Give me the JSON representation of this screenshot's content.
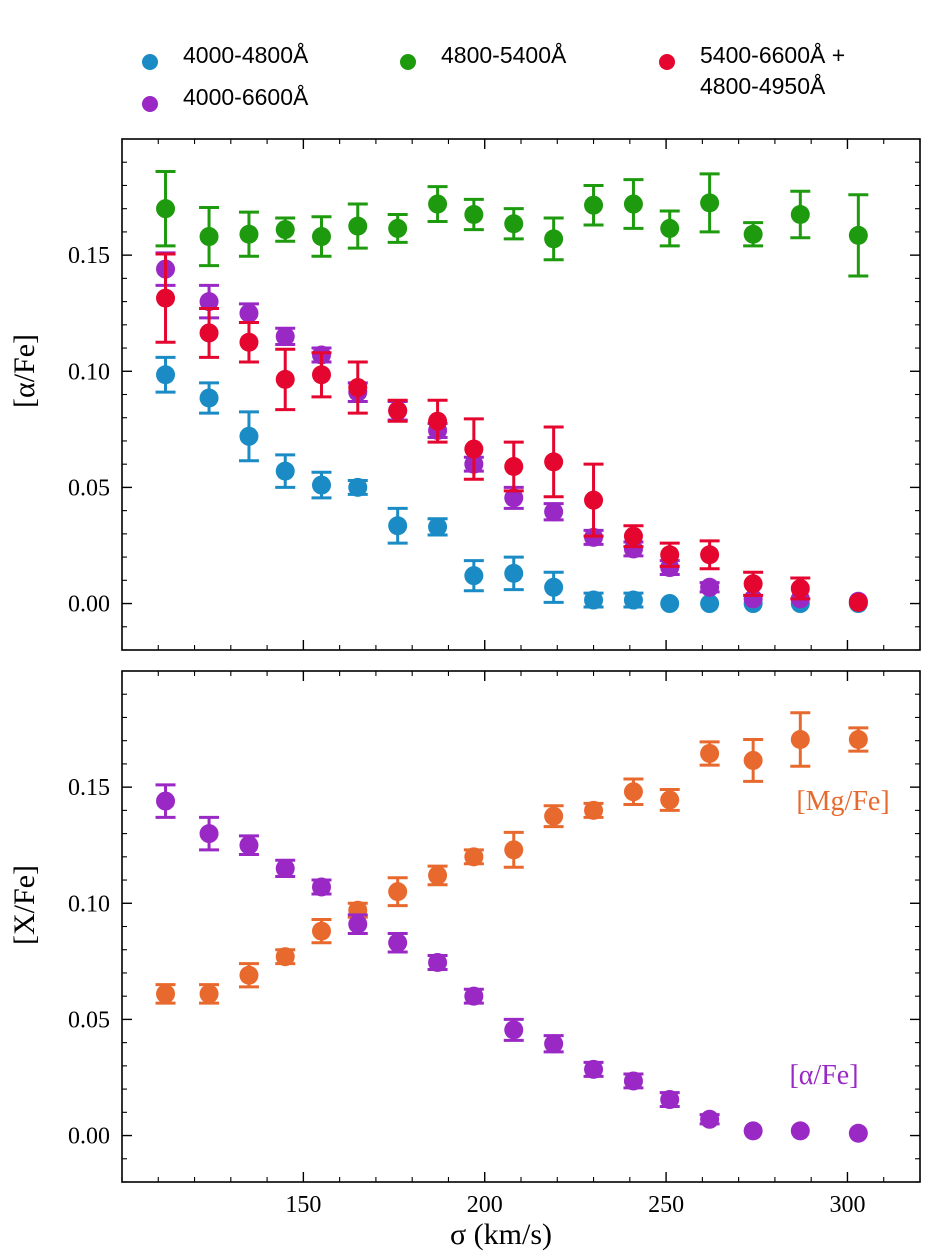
{
  "chart_data": [
    {
      "type": "scatter",
      "panel": "top",
      "xlabel": "σ (km/s)",
      "ylabel": "[α/Fe]",
      "xlim": [
        100,
        320
      ],
      "ylim": [
        -0.02,
        0.2
      ],
      "x_ticks": [
        150,
        200,
        250,
        300
      ],
      "y_ticks": [
        0.0,
        0.05,
        0.1,
        0.15
      ],
      "y_tick_labels": [
        "0.00",
        "0.05",
        "0.10",
        "0.15"
      ],
      "legend": {
        "placement": "above-top",
        "entries": [
          {
            "label": "4000-4800Å",
            "color": "#1a8bc4"
          },
          {
            "label": "4800-5400Å",
            "color": "#1d9a0e"
          },
          {
            "label": "5400-6600Å +",
            "label2": "4800-4950Å",
            "color": "#e4062f"
          },
          {
            "label": "4000-6600Å",
            "color": "#9a28c4"
          }
        ]
      },
      "series": [
        {
          "name": "4000-4800Å",
          "color": "#1a8bc4",
          "x": [
            112,
            124,
            135,
            145,
            155,
            165,
            176,
            187,
            197,
            208,
            219,
            230,
            241,
            251,
            262,
            274,
            287,
            303
          ],
          "y": [
            0.0985,
            0.0885,
            0.072,
            0.057,
            0.051,
            0.05,
            0.0335,
            0.033,
            0.012,
            0.013,
            0.007,
            0.0015,
            0.0015,
            0.0,
            0.0,
            0.0,
            0.0,
            0.0
          ],
          "err": [
            0.0075,
            0.0065,
            0.0105,
            0.007,
            0.0055,
            0.003,
            0.0075,
            0.0035,
            0.0065,
            0.007,
            0.0065,
            0.003,
            0.003,
            0.0,
            0.0,
            0.0,
            0.0,
            0.0
          ]
        },
        {
          "name": "4000-6600Å",
          "color": "#9a28c4",
          "x": [
            112,
            124,
            135,
            145,
            155,
            165,
            176,
            187,
            197,
            208,
            219,
            230,
            241,
            251,
            262,
            274,
            287,
            303
          ],
          "y": [
            0.144,
            0.13,
            0.125,
            0.115,
            0.107,
            0.091,
            0.083,
            0.0745,
            0.06,
            0.0455,
            0.0395,
            0.0285,
            0.0235,
            0.0155,
            0.007,
            0.002,
            0.002,
            0.001
          ],
          "err": [
            0.007,
            0.007,
            0.004,
            0.0035,
            0.003,
            0.004,
            0.004,
            0.003,
            0.003,
            0.0045,
            0.0035,
            0.003,
            0.003,
            0.003,
            0.002,
            0.0,
            0.0,
            0.0
          ]
        },
        {
          "name": "5400-6600Å + 4800-4950Å",
          "color": "#e4062f",
          "x": [
            112,
            124,
            135,
            145,
            155,
            165,
            176,
            187,
            197,
            208,
            219,
            230,
            241,
            251,
            262,
            274,
            287,
            303
          ],
          "y": [
            0.1315,
            0.1165,
            0.1125,
            0.0965,
            0.0985,
            0.093,
            0.083,
            0.0785,
            0.0665,
            0.059,
            0.061,
            0.0445,
            0.029,
            0.021,
            0.021,
            0.0085,
            0.0065,
            0.0005
          ],
          "err": [
            0.019,
            0.0105,
            0.0085,
            0.013,
            0.0095,
            0.011,
            0.0045,
            0.009,
            0.013,
            0.0105,
            0.015,
            0.0155,
            0.0045,
            0.005,
            0.006,
            0.005,
            0.0045,
            0.0
          ]
        },
        {
          "name": "4800-5400Å",
          "color": "#1d9a0e",
          "x": [
            112,
            124,
            135,
            145,
            155,
            165,
            176,
            187,
            197,
            208,
            219,
            230,
            241,
            251,
            262,
            274,
            287,
            303
          ],
          "y": [
            0.17,
            0.158,
            0.159,
            0.161,
            0.158,
            0.1625,
            0.1615,
            0.172,
            0.1675,
            0.1635,
            0.157,
            0.1715,
            0.172,
            0.1615,
            0.1725,
            0.159,
            0.1675,
            0.1585
          ],
          "err": [
            0.016,
            0.0125,
            0.0095,
            0.005,
            0.0085,
            0.0095,
            0.006,
            0.0075,
            0.0065,
            0.0065,
            0.009,
            0.0085,
            0.0105,
            0.0075,
            0.0125,
            0.005,
            0.01,
            0.0175
          ]
        }
      ]
    },
    {
      "type": "scatter",
      "panel": "bottom",
      "xlabel": "σ (km/s)",
      "ylabel": "[X/Fe]",
      "xlim": [
        100,
        320
      ],
      "ylim": [
        -0.02,
        0.2
      ],
      "x_ticks": [
        150,
        200,
        250,
        300
      ],
      "x_tick_labels": [
        "150",
        "200",
        "250",
        "300"
      ],
      "y_ticks": [
        0.0,
        0.05,
        0.1,
        0.15
      ],
      "y_tick_labels": [
        "0.00",
        "0.05",
        "0.10",
        "0.15"
      ],
      "annotations": [
        {
          "text": "[Mg/Fe]",
          "color": "#e8692e"
        },
        {
          "text": "[α/Fe]",
          "color": "#9a28c4"
        }
      ],
      "series": [
        {
          "name": "[Mg/Fe]",
          "color": "#e8692e",
          "x": [
            112,
            124,
            135,
            145,
            155,
            165,
            176,
            187,
            197,
            208,
            219,
            230,
            241,
            251,
            262,
            274,
            287,
            303
          ],
          "y": [
            0.061,
            0.061,
            0.069,
            0.077,
            0.088,
            0.097,
            0.105,
            0.112,
            0.12,
            0.123,
            0.1375,
            0.14,
            0.148,
            0.1445,
            0.1645,
            0.1615,
            0.1705,
            0.1705
          ],
          "err": [
            0.004,
            0.004,
            0.005,
            0.003,
            0.005,
            0.003,
            0.006,
            0.004,
            0.003,
            0.0075,
            0.0045,
            0.003,
            0.0055,
            0.0045,
            0.005,
            0.009,
            0.0115,
            0.005
          ]
        },
        {
          "name": "[α/Fe]",
          "color": "#9a28c4",
          "x": [
            112,
            124,
            135,
            145,
            155,
            165,
            176,
            187,
            197,
            208,
            219,
            230,
            241,
            251,
            262,
            274,
            287,
            303
          ],
          "y": [
            0.144,
            0.13,
            0.125,
            0.115,
            0.107,
            0.091,
            0.083,
            0.0745,
            0.06,
            0.0455,
            0.0395,
            0.0285,
            0.0235,
            0.0155,
            0.007,
            0.002,
            0.002,
            0.001
          ],
          "err": [
            0.007,
            0.007,
            0.004,
            0.0035,
            0.003,
            0.004,
            0.004,
            0.003,
            0.003,
            0.0045,
            0.0035,
            0.003,
            0.003,
            0.003,
            0.002,
            0.0,
            0.0,
            0.0
          ]
        }
      ]
    }
  ]
}
